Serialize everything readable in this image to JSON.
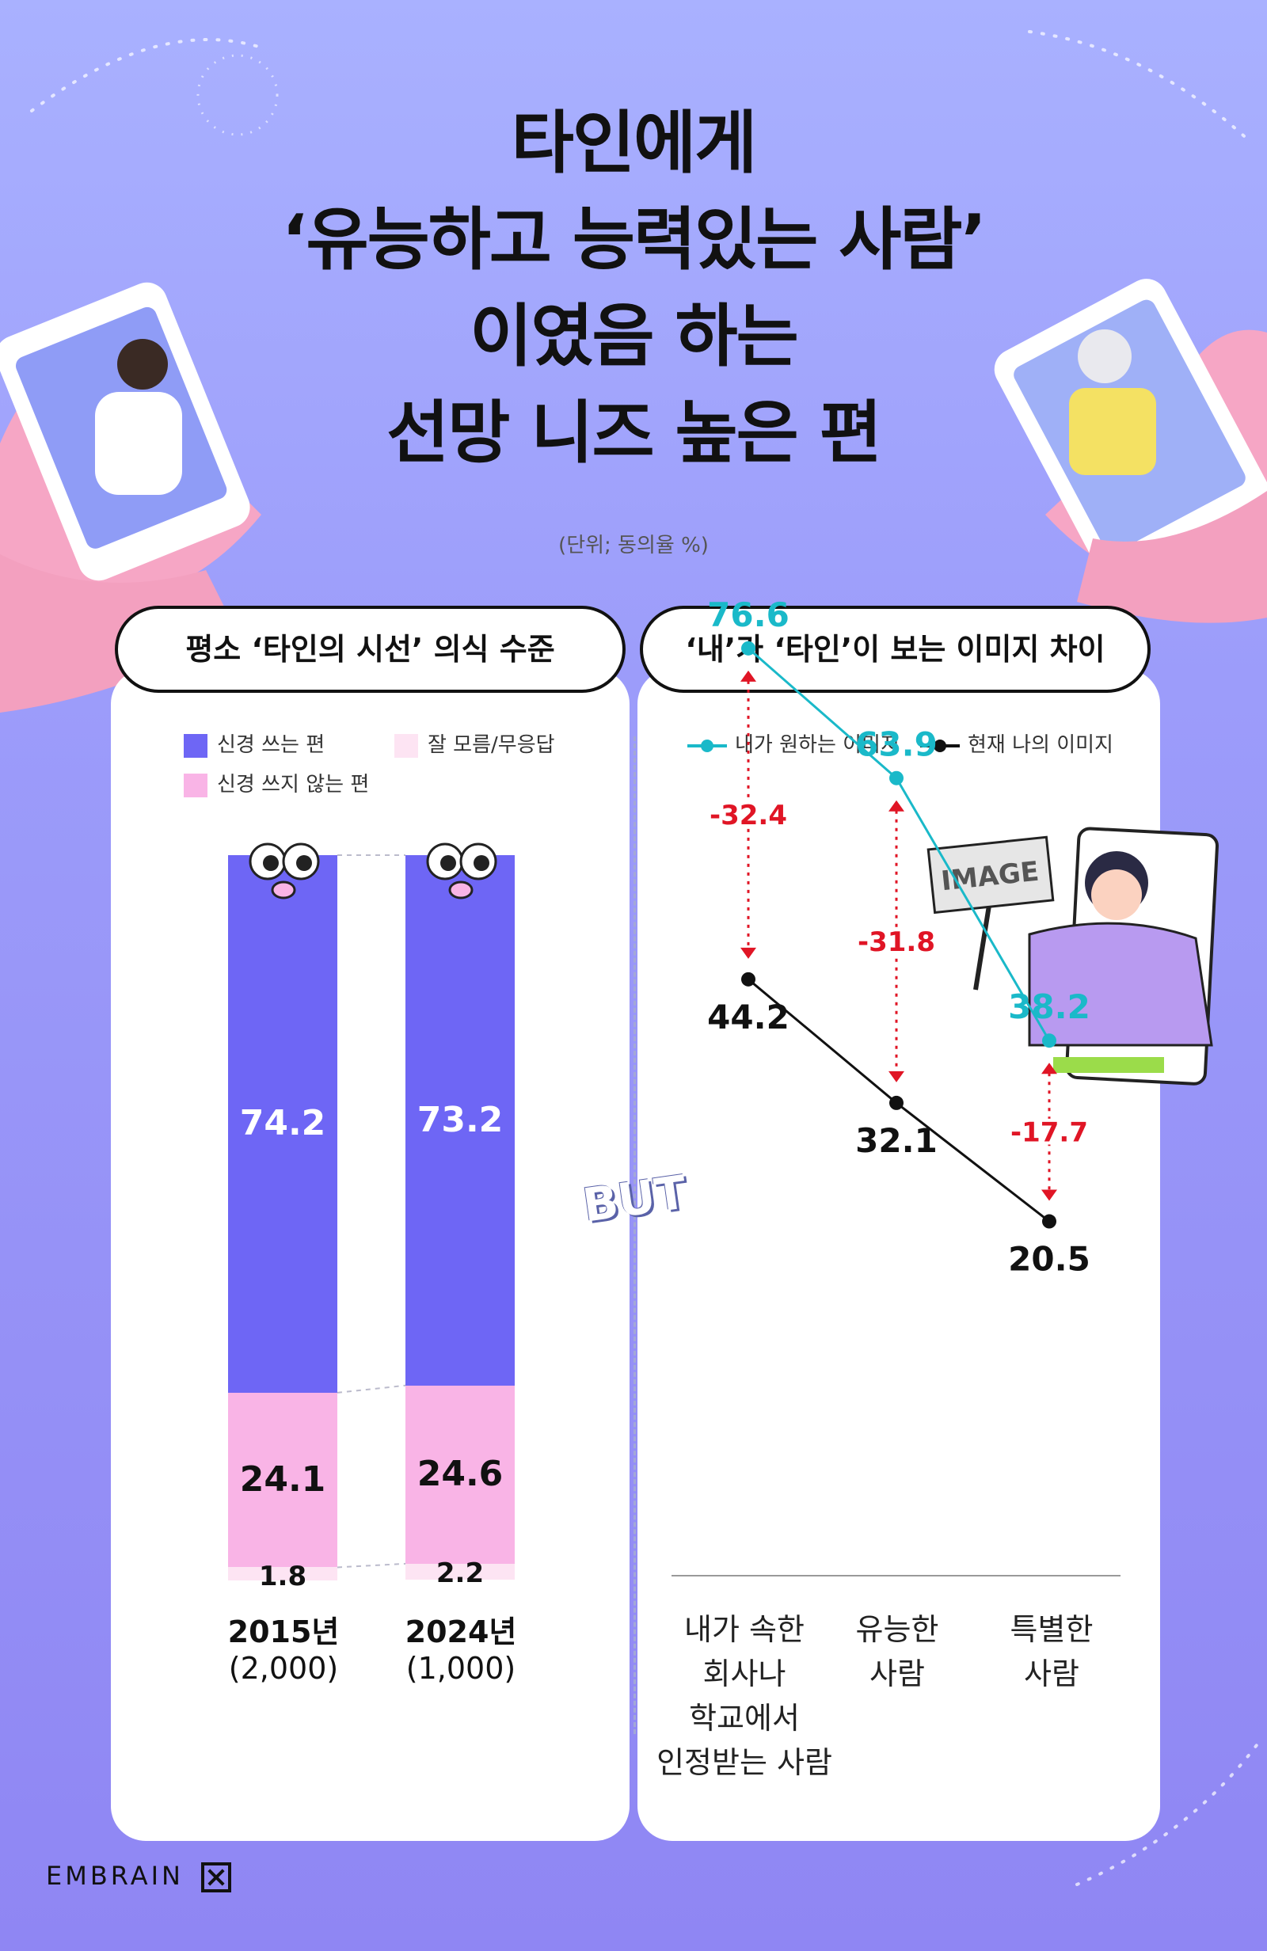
{
  "title": {
    "lines": [
      "타인에게",
      "‘유능하고 능력있는 사람’",
      "이였음 하는",
      "선망 니즈 높은 편"
    ]
  },
  "unit_note": "(단위; 동의율 %)",
  "left_panel": {
    "header": "평소 ‘타인의 시선’ 의식 수준"
  },
  "right_panel": {
    "header": "‘내’가 ‘타인’이 보는 이미지 차이"
  },
  "colors": {
    "care": "#6e66f5",
    "not_care": "#f9b4e6",
    "dont_know": "#fde4f3",
    "wanted": "#1ab9c9",
    "current": "#111111",
    "gap": "#e01525"
  },
  "icons": [
    "eyes-icon",
    "image-sign-icon",
    "person-illustration",
    "hand-phone-illustration",
    "embrain-logo-icon"
  ],
  "decor": {
    "but_text": "BUT",
    "image_sign": "IMAGE"
  },
  "brand": "EMBRAIN",
  "chart_data": [
    {
      "type": "bar",
      "stacked": true,
      "categories": [
        "2015년",
        "2024년"
      ],
      "sample_sizes": [
        "(2,000)",
        "(1,000)"
      ],
      "series": [
        {
          "name": "신경 쓰는 편",
          "values": [
            74.2,
            73.2
          ]
        },
        {
          "name": "신경 쓰지 않는 편",
          "values": [
            24.1,
            24.6
          ]
        },
        {
          "name": "잘 모름/무응답",
          "values": [
            1.8,
            2.2
          ]
        }
      ],
      "legend_position": "top",
      "ylim": [
        0,
        100
      ]
    },
    {
      "type": "line",
      "categories": [
        "내가 속한 회사나 학교에서 인정받는 사람",
        "유능한 사람",
        "특별한 사람"
      ],
      "category_lines": [
        [
          "내가 속한",
          "회사나",
          "학교에서",
          "인정받는 사람"
        ],
        [
          "유능한",
          "사람"
        ],
        [
          "특별한",
          "사람"
        ]
      ],
      "series": [
        {
          "name": "내가 원하는 이미지",
          "values": [
            76.6,
            63.9,
            38.2
          ]
        },
        {
          "name": "현재 나의 이미지",
          "values": [
            44.2,
            32.1,
            20.5
          ]
        }
      ],
      "differences": [
        "-32.4",
        "-31.8",
        "-17.7"
      ],
      "legend_position": "top"
    }
  ]
}
